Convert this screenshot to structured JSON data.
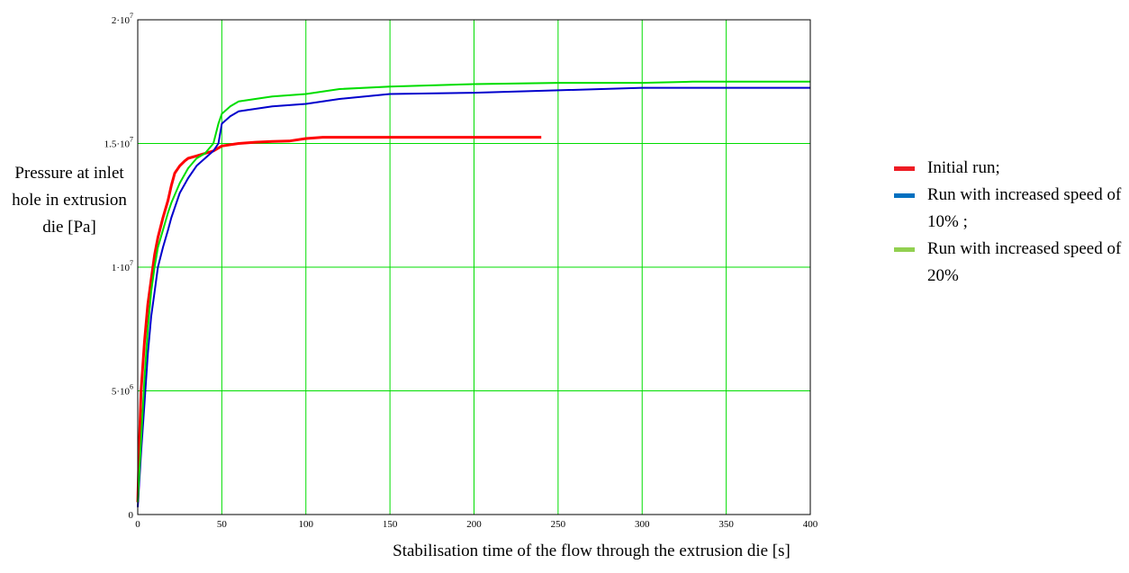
{
  "chart_data": {
    "type": "line",
    "xlabel": "Stabilisation time of the flow through the extrusion die [s]",
    "ylabel": "Pressure at inlet hole in extrusion die [Pa]",
    "xlim": [
      0,
      400
    ],
    "ylim": [
      0,
      20000000
    ],
    "grid": true,
    "legend_position": "right",
    "x_ticks": [
      "0",
      "50",
      "100",
      "150",
      "200",
      "250",
      "300",
      "350",
      "400"
    ],
    "y_ticks": [
      {
        "value": 0,
        "mant": "0",
        "exp": ""
      },
      {
        "value": 5000000,
        "mant": "5·10",
        "exp": "6"
      },
      {
        "value": 10000000,
        "mant": "1·10",
        "exp": "7"
      },
      {
        "value": 15000000,
        "mant": "1.5·10",
        "exp": "7"
      },
      {
        "value": 20000000,
        "mant": "2·10",
        "exp": "7"
      }
    ],
    "series": [
      {
        "name": "Initial run;",
        "color": "#ff0000",
        "legend_color": "#ee1c24",
        "stroke": 3,
        "x": [
          0,
          1,
          2,
          4,
          6,
          8,
          10,
          12,
          15,
          18,
          20,
          22,
          25,
          28,
          30,
          35,
          40,
          45,
          50,
          60,
          70,
          80,
          90,
          100,
          110,
          120,
          150,
          200,
          240
        ],
        "y": [
          500000,
          3000000,
          5000000,
          7000000,
          8500000,
          9500000,
          10500000,
          11200000,
          12000000,
          12700000,
          13300000,
          13800000,
          14100000,
          14300000,
          14400000,
          14500000,
          14600000,
          14700000,
          14900000,
          15000000,
          15050000,
          15080000,
          15100000,
          15200000,
          15250000,
          15250000,
          15250000,
          15250000,
          15250000
        ]
      },
      {
        "name": "Run with increased speed of 10% ;",
        "color": "#0000cc",
        "legend_color": "#0070c0",
        "stroke": 2,
        "x": [
          0,
          2,
          4,
          6,
          8,
          10,
          12,
          15,
          18,
          20,
          25,
          30,
          35,
          40,
          45,
          48,
          50,
          55,
          60,
          70,
          80,
          100,
          120,
          150,
          200,
          250,
          300,
          350,
          400
        ],
        "y": [
          300000,
          2500000,
          4500000,
          6500000,
          8000000,
          9000000,
          10000000,
          10800000,
          11500000,
          12000000,
          13000000,
          13600000,
          14100000,
          14400000,
          14700000,
          15000000,
          15800000,
          16100000,
          16300000,
          16400000,
          16500000,
          16600000,
          16800000,
          17000000,
          17050000,
          17150000,
          17250000,
          17250000,
          17250000
        ]
      },
      {
        "name": "Run with increased speed of 20%",
        "color": "#00dd00",
        "legend_color": "#92d050",
        "stroke": 2,
        "x": [
          0,
          2,
          4,
          6,
          8,
          10,
          12,
          15,
          18,
          20,
          25,
          30,
          35,
          40,
          45,
          48,
          50,
          55,
          60,
          70,
          80,
          100,
          120,
          150,
          200,
          250,
          300,
          330,
          400
        ],
        "y": [
          500000,
          3000000,
          5500000,
          7500000,
          9000000,
          10000000,
          10800000,
          11500000,
          12200000,
          12600000,
          13400000,
          14000000,
          14400000,
          14600000,
          15000000,
          15800000,
          16200000,
          16500000,
          16700000,
          16800000,
          16900000,
          17000000,
          17200000,
          17300000,
          17400000,
          17450000,
          17450000,
          17500000,
          17500000
        ]
      }
    ]
  }
}
